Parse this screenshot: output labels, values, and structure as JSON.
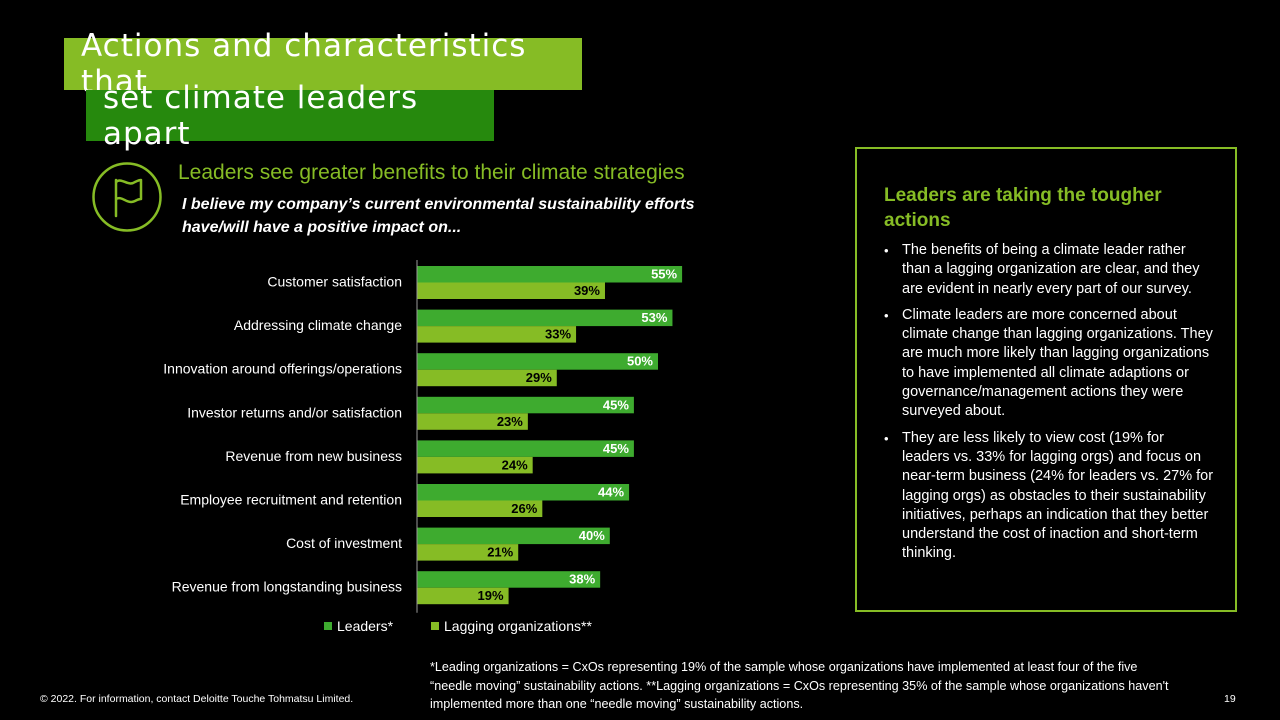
{
  "title": {
    "line1": "Actions and characteristics that",
    "line2": "set climate leaders apart"
  },
  "icon": "flag-icon",
  "subtitle": "Leaders see greater benefits to their climate strategies",
  "question": "I believe my company’s current environmental sustainability efforts have/will have a positive impact on...",
  "colors": {
    "leaders": "#3EAB2F",
    "lagging": "#86BC25",
    "title_dark": "#26890D",
    "accent": "#86BC25"
  },
  "chart_data": {
    "type": "bar",
    "orientation": "horizontal",
    "title": "",
    "categories": [
      "Customer satisfaction",
      "Addressing climate change",
      "Innovation around offerings/operations",
      "Investor returns and/or satisfaction",
      "Revenue from new business",
      "Employee recruitment and retention",
      "Cost of investment",
      "Revenue from longstanding business"
    ],
    "series": [
      {
        "name": "Leaders*",
        "values": [
          55,
          53,
          50,
          45,
          45,
          44,
          40,
          38
        ]
      },
      {
        "name": "Lagging organizations**",
        "values": [
          39,
          33,
          29,
          23,
          24,
          26,
          21,
          19
        ]
      }
    ],
    "value_suffix": "%",
    "xlim": [
      0,
      100
    ],
    "legend": "bottom",
    "grid": false
  },
  "sidebar": {
    "heading": "Leaders are taking the tougher actions",
    "bullets": [
      "The benefits of being a climate leader rather than a lagging organization are clear, and they are evident in nearly every part of our survey.",
      "Climate leaders are more concerned about climate change than lagging organizations. They are much more likely than lagging organizations to have implemented all climate adaptions or governance/management actions they were surveyed about.",
      "They are less likely to view cost (19% for leaders vs. 33% for lagging orgs) and focus on near-term business (24% for leaders vs. 27% for lagging orgs) as obstacles to their sustainability initiatives, perhaps an indication that they better understand the cost of inaction and short-term thinking."
    ]
  },
  "footnote": "*Leading organizations = CxOs representing 19% of the sample whose organizations have implemented at least four of the five “needle moving” sustainability actions. **Lagging organizations = CxOs representing 35% of the sample whose organizations haven't implemented more than one “needle moving” sustainability actions.",
  "copyright": "© 2022. For information, contact Deloitte Touche Tohmatsu Limited.",
  "page_number": "19"
}
